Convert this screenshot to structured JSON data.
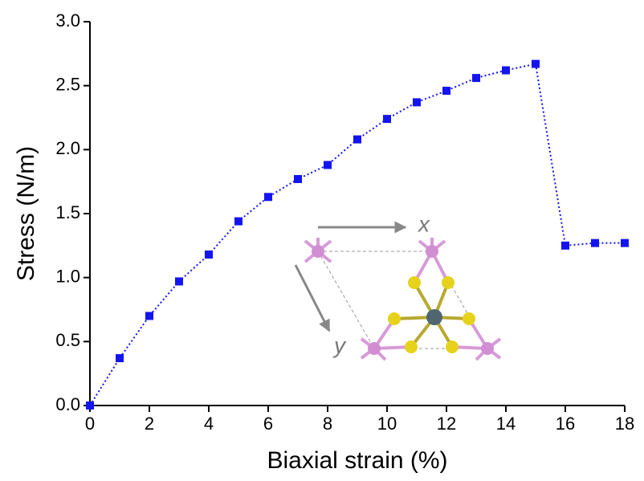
{
  "chart_data": {
    "type": "line",
    "xlabel": "Biaxial strain (%)",
    "ylabel": "Stress (N/m)",
    "x": [
      0,
      1,
      2,
      3,
      4,
      5,
      6,
      7,
      8,
      9,
      10,
      11,
      12,
      13,
      14,
      15,
      16,
      17,
      18
    ],
    "values": [
      0.0,
      0.37,
      0.7,
      0.97,
      1.18,
      1.44,
      1.63,
      1.77,
      1.88,
      2.08,
      2.24,
      2.37,
      2.46,
      2.56,
      2.62,
      2.67,
      1.25,
      1.27,
      1.27
    ],
    "color": "#1414f0",
    "xlim": [
      0,
      18
    ],
    "xticks": [
      0,
      2,
      4,
      6,
      8,
      10,
      12,
      14,
      16,
      18
    ],
    "ylim": [
      0,
      3
    ],
    "yticks": [
      {
        "value": 0,
        "label": "0.0"
      },
      {
        "value": 0.5,
        "label": "0.5"
      },
      {
        "value": 1,
        "label": "1.0"
      },
      {
        "value": 1.5,
        "label": "1.5"
      },
      {
        "value": 2,
        "label": "2.0"
      },
      {
        "value": 2.5,
        "label": "2.5"
      },
      {
        "value": 3,
        "label": "3.0"
      }
    ],
    "annotations": [
      "x",
      "y"
    ]
  }
}
